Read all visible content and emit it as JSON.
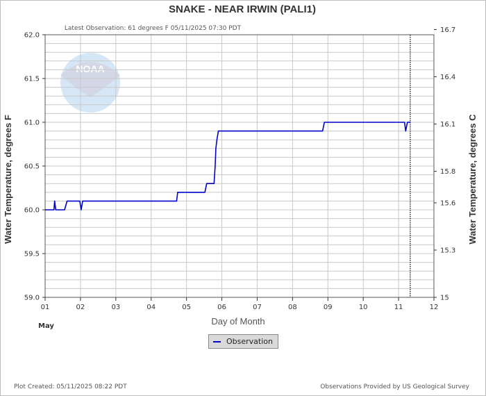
{
  "title": "SNAKE - NEAR IRWIN  (PALI1)",
  "subtitle": "Latest Observation: 61 degrees F 05/11/2025 07:30 PDT",
  "footer_left": "Plot Created: 05/11/2025 08:22 PDT",
  "footer_right": "Observations Provided by US Geological Survey",
  "logo_text": "NOAA",
  "colors": {
    "series": "#0000cc",
    "grid": "#c8c8c8",
    "axis": "#333333"
  },
  "chart_data": {
    "type": "line",
    "title": "SNAKE - NEAR IRWIN  (PALI1)",
    "xlabel": "Day of Month",
    "x_sublabel": "May",
    "ylabel": "Water Temperature, degrees F",
    "y2label": "Water Temperature, degrees C",
    "xlim": [
      1,
      12
    ],
    "ylim": [
      59.0,
      62.0
    ],
    "x_ticks": [
      "01",
      "02",
      "03",
      "04",
      "05",
      "06",
      "07",
      "08",
      "09",
      "10",
      "11",
      "12"
    ],
    "y_ticks": [
      "59.0",
      "59.5",
      "60.0",
      "60.5",
      "61.0",
      "61.5",
      "62.0"
    ],
    "y2_ticks": [
      {
        "label": "15",
        "value_f": 59.0
      },
      {
        "label": "15.3",
        "value_f": 59.54
      },
      {
        "label": "15.6",
        "value_f": 60.08
      },
      {
        "label": "15.8",
        "value_f": 60.44
      },
      {
        "label": "16.1",
        "value_f": 60.98
      },
      {
        "label": "16.4",
        "value_f": 61.52
      },
      {
        "label": "16.7",
        "value_f": 62.06
      }
    ],
    "latest_observation_day": 11.33,
    "grid": true,
    "legend_position": "bottom-center",
    "series": [
      {
        "name": "Observation",
        "x": [
          1.0,
          1.25,
          1.27,
          1.3,
          1.55,
          1.62,
          1.98,
          2.02,
          2.06,
          4.72,
          4.75,
          5.52,
          5.57,
          5.78,
          5.81,
          5.83,
          5.86,
          5.9,
          5.95,
          6.0,
          8.85,
          8.9,
          11.17,
          11.2,
          11.25,
          11.33
        ],
        "y": [
          60.0,
          60.0,
          60.1,
          60.0,
          60.0,
          60.1,
          60.1,
          60.0,
          60.1,
          60.1,
          60.2,
          60.2,
          60.3,
          60.3,
          60.5,
          60.7,
          60.8,
          60.9,
          60.9,
          60.9,
          60.9,
          61.0,
          61.0,
          60.9,
          61.0,
          61.0
        ]
      }
    ]
  }
}
